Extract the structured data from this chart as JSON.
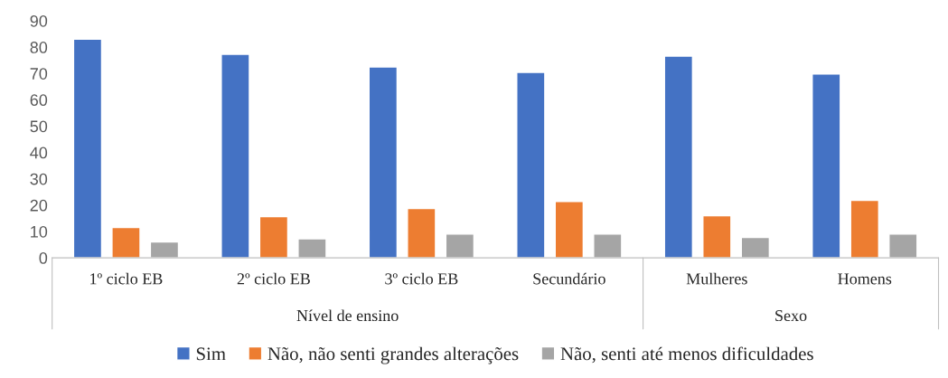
{
  "chart_data": {
    "type": "bar",
    "categories": [
      "1º ciclo EB",
      "2º ciclo EB",
      "3º ciclo EB",
      "Secundário",
      "Mulheres",
      "Homens"
    ],
    "series": [
      {
        "name": "Sim",
        "color": "#4472c4",
        "values": [
          83,
          77.3,
          72.5,
          70.4,
          76.6,
          69.8
        ]
      },
      {
        "name": "Não, não senti grandes alterações",
        "color": "#ed7d31",
        "values": [
          11.5,
          15.6,
          18.7,
          21.4,
          16,
          21.8
        ]
      },
      {
        "name": "Não, senti até menos dificuldades",
        "color": "#a5a5a5",
        "values": [
          6,
          7.2,
          9,
          9,
          7.7,
          9
        ]
      }
    ],
    "annotations": [
      "Nível de ensino",
      "Sexo"
    ],
    "ylim": [
      0,
      90
    ],
    "yticks": [
      0,
      10,
      20,
      30,
      40,
      50,
      60,
      70,
      80,
      90
    ],
    "grid": false,
    "legend": "bottom"
  }
}
